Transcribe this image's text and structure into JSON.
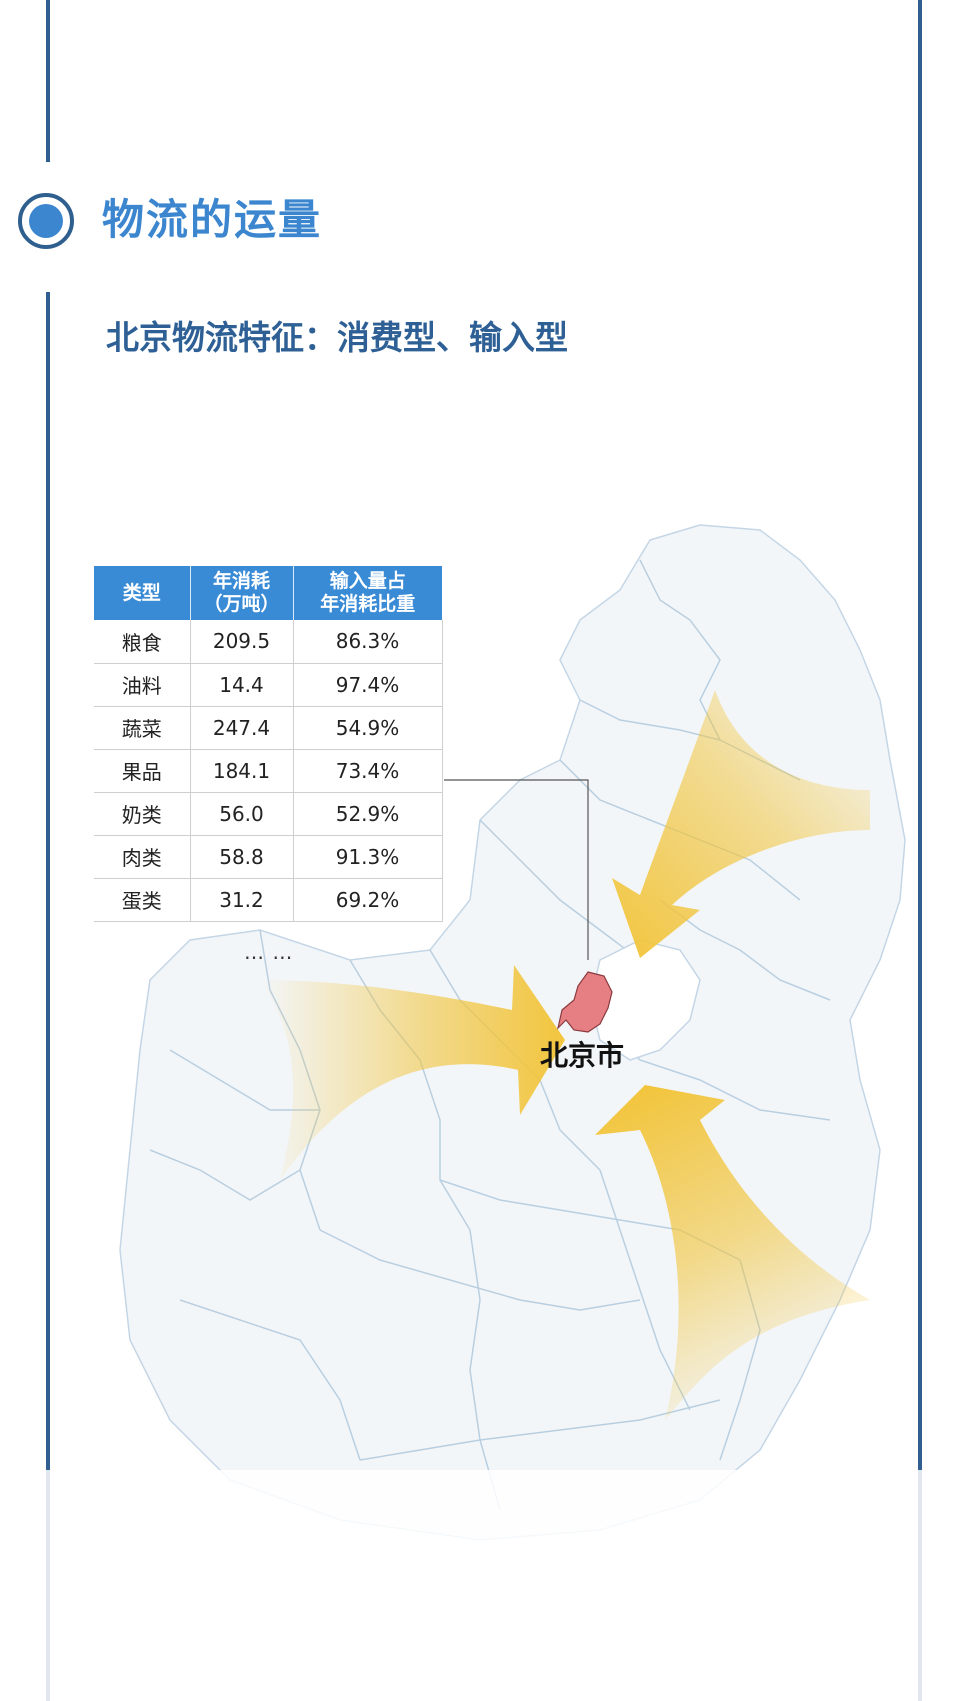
{
  "section": {
    "title": "物流的运量",
    "subtitle": "北京物流特征：消费型、输入型"
  },
  "table": {
    "headers": {
      "type": "类型",
      "consumption_line1": "年消耗",
      "consumption_line2": "（万吨）",
      "ratio_line1": "输入量占",
      "ratio_line2": "年消耗比重"
    },
    "rows": [
      {
        "type": "粮食",
        "consumption": "209.5",
        "ratio": "86.3%"
      },
      {
        "type": "油料",
        "consumption": "14.4",
        "ratio": "97.4%"
      },
      {
        "type": "蔬菜",
        "consumption": "247.4",
        "ratio": "54.9%"
      },
      {
        "type": "果品",
        "consumption": "184.1",
        "ratio": "73.4%"
      },
      {
        "type": "奶类",
        "consumption": "56.0",
        "ratio": "52.9%"
      },
      {
        "type": "肉类",
        "consumption": "58.8",
        "ratio": "91.3%"
      },
      {
        "type": "蛋类",
        "consumption": "31.2",
        "ratio": "69.2%"
      }
    ],
    "more": "… …"
  },
  "map": {
    "city_label": "北京市",
    "city_color": "#e57f83",
    "arrow_color": "#f2c53d",
    "border_color": "#b9cfe0"
  }
}
